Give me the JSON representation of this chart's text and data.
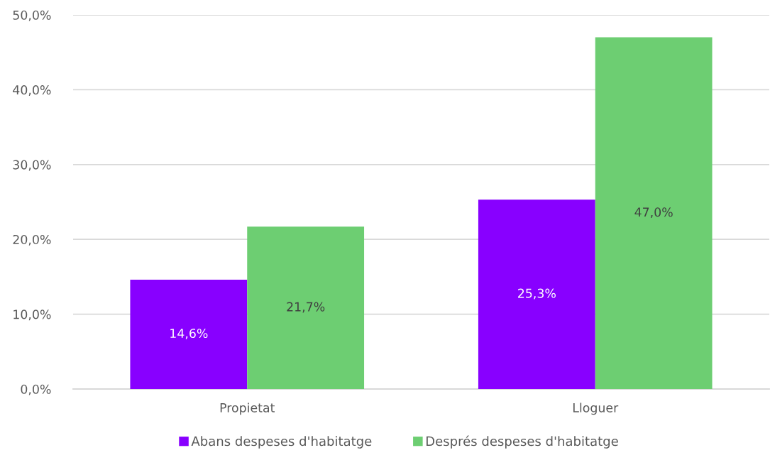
{
  "chart_data": {
    "type": "bar",
    "categories": [
      "Propietat",
      "Lloguer"
    ],
    "series": [
      {
        "name": "Abans despeses d'habitatge",
        "color": "#8800ff",
        "values": [
          14.6,
          25.3
        ],
        "value_labels": [
          "14,6%",
          "25,3%"
        ]
      },
      {
        "name": "Després despeses d'habitatge",
        "color": "#6dce72",
        "values": [
          21.7,
          47.0
        ],
        "value_labels": [
          "21,7%",
          "47,0%"
        ]
      }
    ],
    "ylim": [
      0,
      50
    ],
    "yticks": [
      {
        "value": 0,
        "label": "0,0%"
      },
      {
        "value": 10,
        "label": "10,0%"
      },
      {
        "value": 20,
        "label": "20,0%"
      },
      {
        "value": 30,
        "label": "30,0%"
      },
      {
        "value": 40,
        "label": "40,0%"
      },
      {
        "value": 50,
        "label": "50,0%"
      }
    ],
    "grid": "y",
    "legend": "bottom"
  }
}
